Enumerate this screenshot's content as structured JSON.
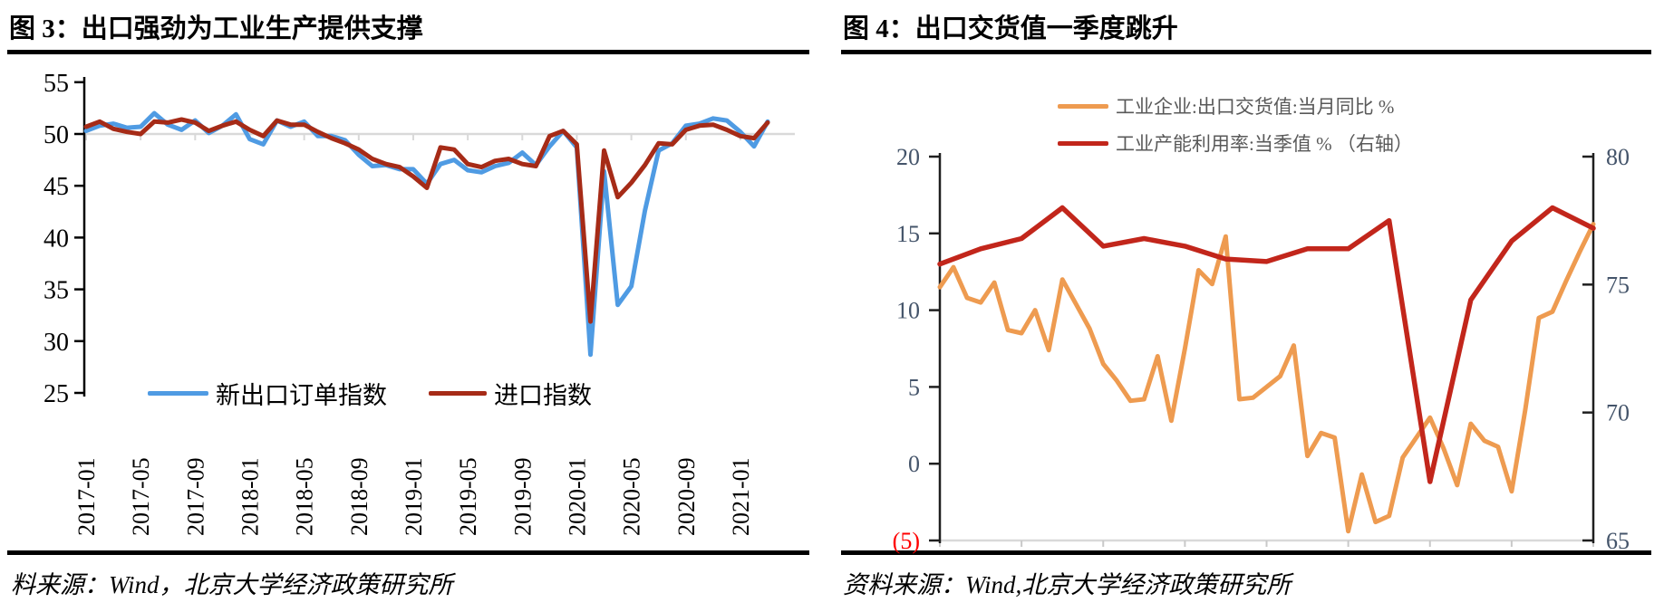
{
  "fig3": {
    "title": "图 3：出口强劲为工业生产提供支撑",
    "source": "料来源：Wind，北京大学经济政策研究所",
    "legend": [
      {
        "label": "新出口订单指数",
        "color": "#4F9BE3"
      },
      {
        "label": "进口指数",
        "color": "#A62B17"
      }
    ],
    "chart_data": {
      "type": "line",
      "freq": "monthly",
      "start": "2017-01",
      "end": "2021-03",
      "x_tick_labels": [
        "2017-01",
        "2017-05",
        "2017-09",
        "2018-01",
        "2018-05",
        "2018-09",
        "2019-01",
        "2019-05",
        "2019-09",
        "2020-01",
        "2020-05",
        "2020-09",
        "2021-01"
      ],
      "ylim": [
        25,
        55
      ],
      "y_ticks": [
        55,
        50,
        45,
        40,
        35,
        30,
        25
      ],
      "category_axis_crosses_at": 50,
      "grid": false,
      "legend_position": "inside-bottom-left",
      "axis_color": "#000000",
      "gridline_color": "#D9D9D9",
      "series": [
        {
          "name": "新出口订单指数",
          "color": "#4F9BE3",
          "values": [
            50.3,
            50.8,
            51.0,
            50.6,
            50.7,
            52.0,
            50.9,
            50.4,
            51.3,
            50.1,
            50.8,
            51.9,
            49.5,
            49.0,
            51.3,
            50.7,
            51.2,
            49.8,
            49.8,
            49.4,
            48.0,
            46.9,
            47.0,
            46.6,
            46.6,
            45.2,
            47.1,
            47.5,
            46.5,
            46.3,
            46.9,
            47.2,
            48.2,
            47.0,
            48.8,
            50.3,
            48.7,
            28.7,
            46.4,
            33.5,
            35.3,
            42.6,
            48.4,
            49.1,
            50.8,
            51.0,
            51.5,
            51.3,
            50.2,
            48.8,
            51.2
          ]
        },
        {
          "name": "进口指数",
          "color": "#A62B17",
          "values": [
            50.7,
            51.2,
            50.5,
            50.2,
            50.0,
            51.2,
            51.1,
            51.4,
            51.1,
            50.3,
            50.8,
            51.2,
            50.4,
            49.8,
            51.3,
            50.9,
            50.9,
            50.2,
            49.6,
            49.1,
            48.5,
            47.6,
            47.1,
            46.8,
            45.9,
            44.8,
            48.7,
            48.5,
            47.1,
            46.8,
            47.4,
            47.6,
            47.1,
            46.9,
            49.8,
            50.3,
            49.0,
            31.9,
            48.4,
            43.9,
            45.3,
            47.0,
            49.1,
            49.0,
            50.4,
            50.8,
            50.9,
            50.4,
            49.8,
            49.6,
            51.1
          ]
        }
      ]
    }
  },
  "fig4": {
    "title": "图 4：出口交货值一季度跳升",
    "source": "资料来源：Wind,北京大学经济政策研究所",
    "legend": [
      {
        "label": "工业企业:出口交货值:当月同比 %",
        "color": "#EE9B50"
      },
      {
        "label": "工业产能利用率:当季值 % （右轴）",
        "color": "#C2261B"
      }
    ],
    "chart_data": {
      "type": "line",
      "left_axis": {
        "ylim": [
          -5,
          20
        ],
        "tick_values": [
          20,
          15,
          10,
          5,
          0,
          -5
        ],
        "tick_labels": [
          "20",
          "15",
          "10",
          "5",
          "0",
          "(5)"
        ],
        "label_color": "#44546A",
        "negative_label_color": "#FF0000"
      },
      "right_axis": {
        "ylim": [
          65,
          80
        ],
        "tick_values": [
          80,
          75,
          70,
          65
        ],
        "tick_labels": [
          "80",
          "75",
          "70",
          "65"
        ],
        "label_color": "#44546A"
      },
      "x_axis": {
        "labels_visible": false,
        "tick_count": 9,
        "line_color": "#D9D9D9"
      },
      "legend_position": "top-center",
      "series": [
        {
          "name": "工业企业:出口交货值:当月同比 %",
          "axis": "left",
          "freq": "monthly",
          "start": "2017-03",
          "end": "2021-03",
          "color": "#EE9B50",
          "values": [
            11.5,
            12.8,
            10.8,
            10.5,
            11.8,
            8.7,
            8.5,
            10.0,
            7.4,
            12.0,
            10.4,
            8.8,
            6.5,
            5.4,
            4.1,
            4.2,
            7.0,
            2.8,
            7.5,
            12.6,
            11.7,
            14.8,
            4.2,
            4.3,
            5.0,
            5.7,
            7.7,
            0.5,
            2.0,
            1.7,
            -4.4,
            -0.7,
            -3.8,
            -3.4,
            0.4,
            1.7,
            3.0,
            1.0,
            -1.4,
            2.6,
            1.5,
            1.1,
            -1.8,
            3.5,
            9.5,
            9.9,
            11.9,
            13.8,
            15.6
          ]
        },
        {
          "name": "工业产能利用率:当季值 %（右轴）",
          "axis": "right",
          "freq": "quarterly",
          "start": "2017Q1",
          "end": "2021Q1",
          "color": "#C2261B",
          "values": [
            75.8,
            76.4,
            76.8,
            78.0,
            76.5,
            76.8,
            76.5,
            76.0,
            75.9,
            76.4,
            76.4,
            77.5,
            67.3,
            74.4,
            76.7,
            78.0,
            77.2
          ]
        }
      ]
    }
  }
}
